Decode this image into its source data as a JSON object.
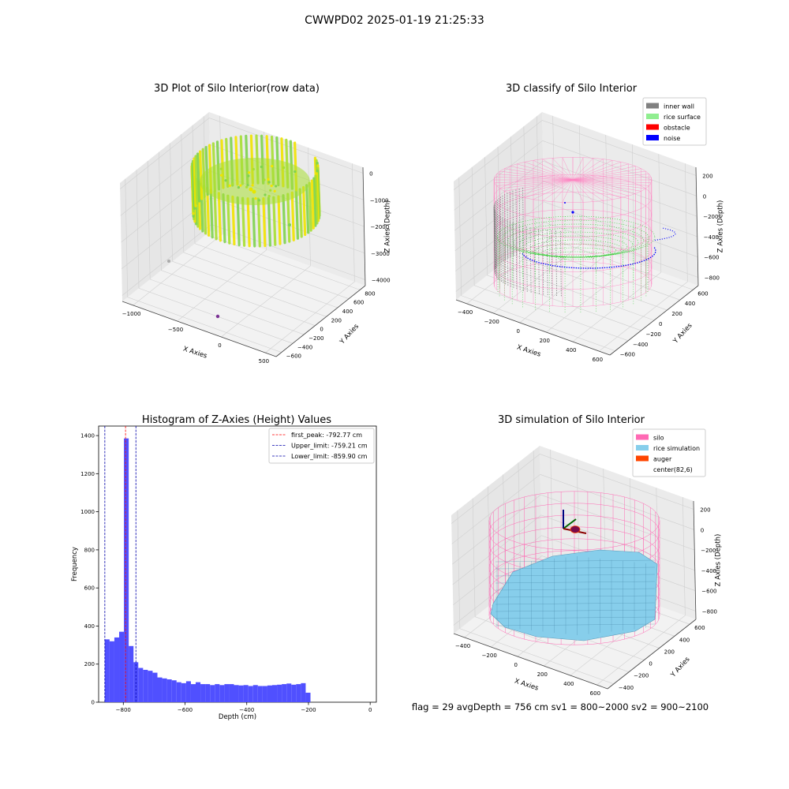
{
  "figure": {
    "title": "CWWPD02 2025-01-19 21:25:33",
    "footer": "flag = 29  avgDepth = 756 cm  sv1 = 800~2000  sv2 = 900~2100"
  },
  "chart_data": [
    {
      "type": "scatter",
      "title": "3D Plot of Silo Interior(row data)",
      "xlabel": "X Axies",
      "ylabel": "Y Axies",
      "zlabel": "Z Axies (Depth)",
      "x_ticks": [
        "−1000",
        "−500",
        "0",
        "500"
      ],
      "y_ticks": [
        "−600",
        "−400",
        "−200",
        "0",
        "200",
        "400",
        "600",
        "800"
      ],
      "z_ticks": [
        "−4000",
        "−3000",
        "−2000",
        "−1000",
        "0"
      ],
      "colors": [
        "#f2e400",
        "#a8df32",
        "#7fd34e"
      ]
    },
    {
      "type": "scatter",
      "title": "3D classify of Silo Interior",
      "xlabel": "X Axies",
      "ylabel": "Y Axies",
      "zlabel": "Z Axies (Depth)",
      "x_ticks": [
        "−400",
        "−200",
        "0",
        "200",
        "400",
        "600"
      ],
      "y_ticks": [
        "−600",
        "−400",
        "−200",
        "0",
        "200",
        "400",
        "600"
      ],
      "z_ticks": [
        "−800",
        "−600",
        "−400",
        "−200",
        "0",
        "200"
      ],
      "legend": [
        {
          "label": "inner wall",
          "color": "#808080"
        },
        {
          "label": "rice surface",
          "color": "#90ee90"
        },
        {
          "label": "obstacle",
          "color": "#ff0000"
        },
        {
          "label": "noise",
          "color": "#0000ff"
        }
      ]
    },
    {
      "type": "bar",
      "title": "Histogram of Z-Axies (Height) Values",
      "xlabel": "Depth (cm)",
      "ylabel": "Frequency",
      "xlim": [
        -880,
        20
      ],
      "ylim": [
        0,
        1450
      ],
      "x_ticks": [
        -800,
        -600,
        -400,
        -200,
        0
      ],
      "x_tick_labels": [
        "−800",
        "−600",
        "−400",
        "−200",
        "0"
      ],
      "y_ticks": [
        0,
        200,
        400,
        600,
        800,
        1000,
        1200,
        1400
      ],
      "bin_start": -860,
      "bin_width": 15.5,
      "values": [
        330,
        320,
        340,
        370,
        1385,
        295,
        210,
        180,
        170,
        165,
        155,
        130,
        125,
        120,
        115,
        105,
        100,
        110,
        95,
        105,
        95,
        95,
        90,
        95,
        90,
        95,
        95,
        90,
        88,
        90,
        85,
        90,
        85,
        85,
        88,
        90,
        92,
        95,
        98,
        92,
        95,
        100,
        50
      ],
      "bar_color": "#5050ff",
      "vlines": [
        {
          "x": -792.77,
          "color": "#ff0000",
          "label": "first_peak: -792.77 cm"
        },
        {
          "x": -759.21,
          "color": "#0000aa",
          "label": "Upper_limit: -759.21 cm"
        },
        {
          "x": -859.9,
          "color": "#0000aa",
          "label": "Lower_limit: -859.90 cm"
        }
      ]
    },
    {
      "type": "surface",
      "title": "3D simulation of Silo Interior",
      "xlabel": "X Axies",
      "ylabel": "Y Axies",
      "zlabel": "Z Axies (Depth)",
      "x_ticks": [
        "−400",
        "−200",
        "0",
        "200",
        "400",
        "600"
      ],
      "y_ticks": [
        "−400",
        "−200",
        "0",
        "200",
        "400",
        "600"
      ],
      "z_ticks": [
        "−800",
        "−600",
        "−400",
        "−200",
        "0",
        "200"
      ],
      "legend": [
        {
          "label": "silo",
          "color": "#ff69b4"
        },
        {
          "label": "rice simulation",
          "color": "#87ceeb"
        },
        {
          "label": "auger",
          "color": "#ff4500"
        },
        {
          "label": "center(82,6)",
          "color": ""
        }
      ]
    }
  ]
}
